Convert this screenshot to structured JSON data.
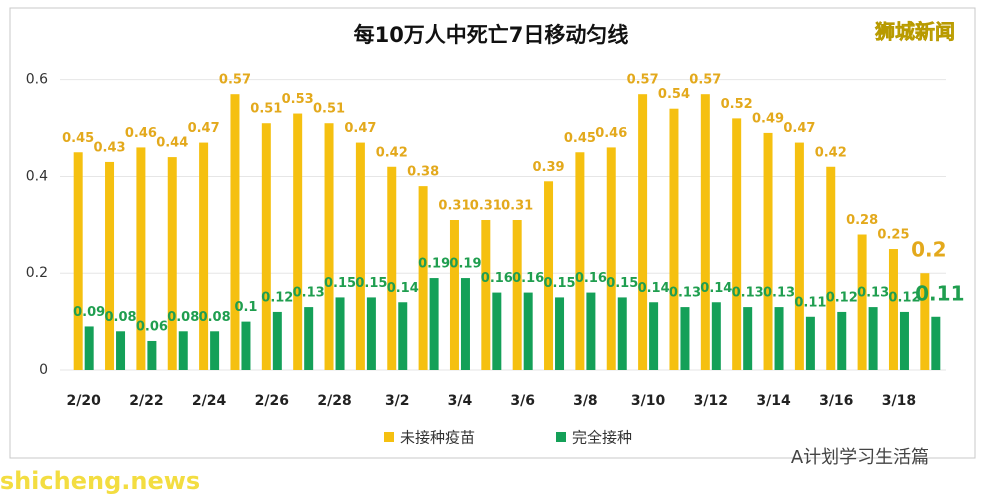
{
  "chart_data": {
    "type": "bar",
    "title": "每10万人中死亡7日移动匀线",
    "watermark": "狮城新闻",
    "site_watermark": "shicheng.news",
    "account": "A计划学习生活篇",
    "categories": [
      "2/20",
      null,
      "2/22",
      null,
      "2/24",
      null,
      "2/26",
      null,
      "2/28",
      null,
      "3/2",
      null,
      "3/4",
      null,
      "3/6",
      null,
      "3/8",
      null,
      "3/10",
      null,
      "3/12",
      null,
      "3/14",
      null,
      "3/16",
      null,
      "3/18",
      null
    ],
    "series": [
      {
        "name": "未接种疫苗",
        "color": "#f5c010",
        "label_color": "#e3a91c",
        "values": [
          0.45,
          0.43,
          0.46,
          0.44,
          0.47,
          0.57,
          0.51,
          0.53,
          0.51,
          0.47,
          0.42,
          0.38,
          0.31,
          0.31,
          0.31,
          0.39,
          0.45,
          0.46,
          0.57,
          0.54,
          0.57,
          0.52,
          0.49,
          0.47,
          0.42,
          0.28,
          0.25,
          0.2
        ]
      },
      {
        "name": "完全接种",
        "color": "#14a058",
        "label_color": "#1f9e4f",
        "values": [
          0.09,
          0.08,
          0.06,
          0.08,
          0.08,
          0.1,
          0.12,
          0.13,
          0.15,
          0.15,
          0.14,
          0.19,
          0.19,
          0.16,
          0.16,
          0.15,
          0.16,
          0.15,
          0.14,
          0.13,
          0.14,
          0.13,
          0.13,
          0.11,
          0.12,
          0.13,
          0.12,
          0.11
        ]
      }
    ],
    "ylim": [
      0,
      0.62
    ],
    "yticks": [
      0,
      0.2,
      0.4,
      0.6
    ],
    "grid": true,
    "legend": "bottom"
  }
}
